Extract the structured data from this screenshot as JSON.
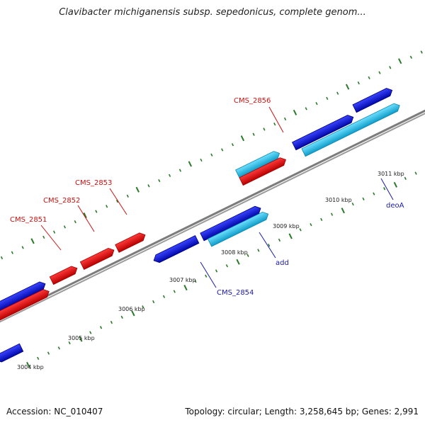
{
  "title": "Clavibacter michiganensis subsp. sepedonicus, complete genom...",
  "footer": {
    "accession": "Accession: NC_010407",
    "summary": "Topology: circular; Length: 3,258,645 bp; Genes: 2,991"
  },
  "colors": {
    "forward_gene": "#0a10e0",
    "reverse_gene": "#ee1111",
    "rna_or_other": "#22c6f2",
    "backbone": "#8a8a8a",
    "tick": "#2a7a2a",
    "label_red": "#cc1111",
    "label_blue": "#1a1aa8"
  },
  "scale": {
    "ticks": [
      {
        "label": "3004 kbp"
      },
      {
        "label": "3005 kbp"
      },
      {
        "label": "3006 kbp"
      },
      {
        "label": "3007 kbp"
      },
      {
        "label": "3008 kbp"
      },
      {
        "label": "3009 kbp"
      },
      {
        "label": "3010 kbp"
      },
      {
        "label": "3011 kbp"
      }
    ]
  },
  "gene_labels": [
    {
      "text": "CMS_2851",
      "color": "red"
    },
    {
      "text": "CMS_2852",
      "color": "red"
    },
    {
      "text": "CMS_2853",
      "color": "red"
    },
    {
      "text": "CMS_2856",
      "color": "red"
    },
    {
      "text": "CMS_2854",
      "color": "blue"
    },
    {
      "text": "add",
      "color": "blue"
    },
    {
      "text": "deoA",
      "color": "blue"
    }
  ]
}
